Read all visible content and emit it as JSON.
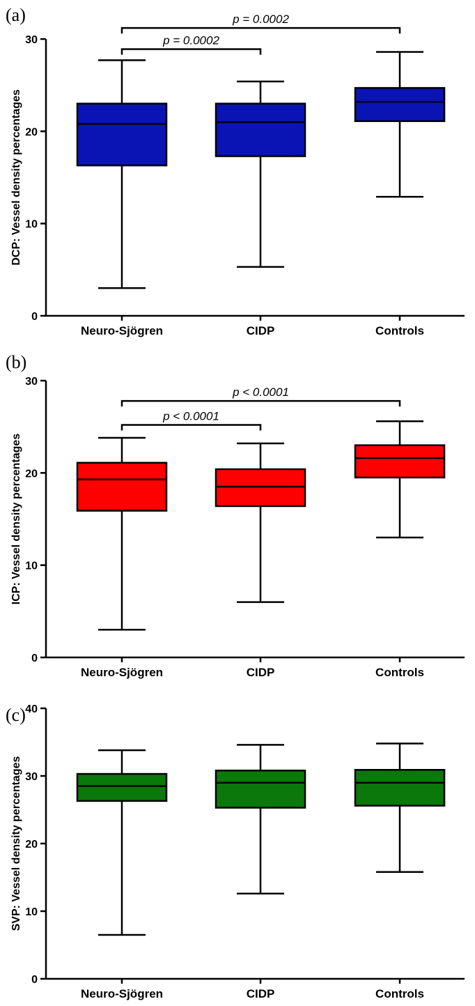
{
  "chart_data": [
    {
      "type": "boxplot",
      "panel_label": "(a)",
      "ylabel": "DCP: Vessel density percentages",
      "categories": [
        "Neuro-Sjögren",
        "CIDP",
        "Controls"
      ],
      "ylim": [
        0,
        30
      ],
      "yticks": [
        0,
        10,
        20,
        30
      ],
      "box_color": "#0a14b4",
      "boxes": [
        {
          "min": 3.0,
          "q1": 16.3,
          "median": 20.8,
          "q3": 23.0,
          "max": 27.7
        },
        {
          "min": 5.3,
          "q1": 17.3,
          "median": 21.0,
          "q3": 23.0,
          "max": 25.4
        },
        {
          "min": 12.9,
          "q1": 21.1,
          "median": 23.2,
          "q3": 24.7,
          "max": 28.6
        }
      ],
      "comparisons": [
        {
          "from": 0,
          "to": 2,
          "level": 31.2,
          "label": "p = 0.0002"
        },
        {
          "from": 0,
          "to": 1,
          "level": 28.9,
          "label": "p = 0.0002"
        }
      ]
    },
    {
      "type": "boxplot",
      "panel_label": "(b)",
      "ylabel": "ICP: Vessel density percentages",
      "categories": [
        "Neuro-Sjögren",
        "CIDP",
        "Controls"
      ],
      "ylim": [
        0,
        30
      ],
      "yticks": [
        0,
        10,
        20,
        30
      ],
      "box_color": "#ff0000",
      "boxes": [
        {
          "min": 3.0,
          "q1": 15.9,
          "median": 19.3,
          "q3": 21.1,
          "max": 23.8
        },
        {
          "min": 6.0,
          "q1": 16.4,
          "median": 18.5,
          "q3": 20.4,
          "max": 23.2
        },
        {
          "min": 13.0,
          "q1": 19.5,
          "median": 21.6,
          "q3": 23.0,
          "max": 25.6
        }
      ],
      "comparisons": [
        {
          "from": 0,
          "to": 2,
          "level": 27.8,
          "label": "p < 0.0001"
        },
        {
          "from": 0,
          "to": 1,
          "level": 25.2,
          "label": "p < 0.0001"
        }
      ]
    },
    {
      "type": "boxplot",
      "panel_label": "(c)",
      "ylabel": "SVP: Vessel density percentages",
      "categories": [
        "Neuro-Sjögren",
        "CIDP",
        "Controls"
      ],
      "ylim": [
        0,
        40
      ],
      "yticks": [
        0,
        10,
        20,
        30,
        40
      ],
      "box_color": "#0a780a",
      "boxes": [
        {
          "min": 6.5,
          "q1": 26.3,
          "median": 28.5,
          "q3": 30.3,
          "max": 33.8
        },
        {
          "min": 12.6,
          "q1": 25.3,
          "median": 29.0,
          "q3": 30.8,
          "max": 34.6
        },
        {
          "min": 15.8,
          "q1": 25.6,
          "median": 29.0,
          "q3": 30.9,
          "max": 34.8
        }
      ],
      "comparisons": []
    }
  ]
}
